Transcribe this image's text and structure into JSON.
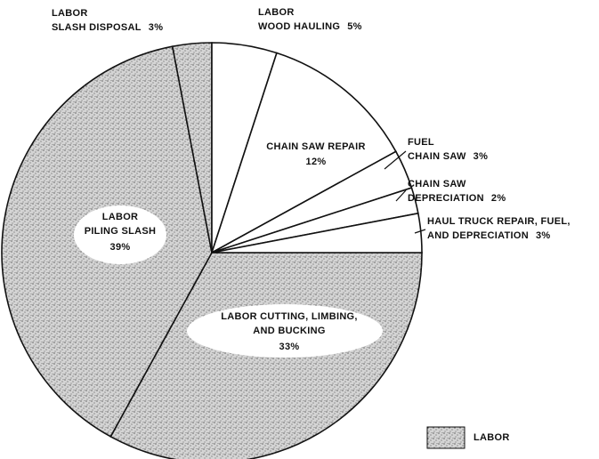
{
  "chart_data": {
    "type": "pie",
    "categories": [
      [
        "LABOR CUTTING, LIMBING,",
        "AND BUCKING"
      ],
      [
        "LABOR",
        "PILING SLASH"
      ],
      [
        "LABOR",
        "SLASH DISPOSAL"
      ],
      [
        "LABOR",
        "WOOD HAULING"
      ],
      [
        "CHAIN SAW REPAIR"
      ],
      [
        "FUEL",
        "CHAIN SAW"
      ],
      [
        "CHAIN SAW",
        "DEPRECIATION"
      ],
      [
        "HAUL TRUCK REPAIR, FUEL,",
        "AND DEPRECIATION"
      ]
    ],
    "values": [
      33,
      39,
      3,
      5,
      12,
      3,
      2,
      3
    ],
    "value_labels": [
      "33%",
      "39%",
      "3%",
      "5%",
      "12%",
      "3%",
      "2%",
      "3%"
    ],
    "colors": [
      "#d4d4d4",
      "#d4d4d4",
      "#d4d4d4",
      "#ffffff",
      "#ffffff",
      "#ffffff",
      "#ffffff",
      "#ffffff"
    ],
    "legend": {
      "label": "LABOR",
      "color": "#d4d4d4"
    }
  }
}
